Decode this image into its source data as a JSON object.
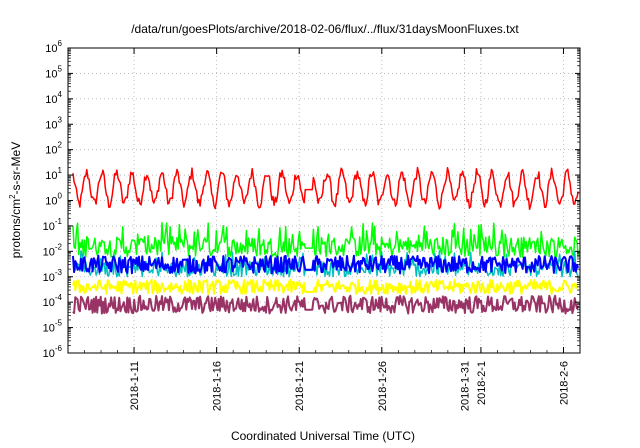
{
  "chart_data": {
    "type": "line",
    "title": "/data/run/goesPlots/archive/2018-02-06/flux/../flux/31daysMoonFluxes.txt",
    "xlabel": "Coordinated Universal Time (UTC)",
    "ylabel": "protons/cm²-s-sr-MeV",
    "ylabel_parts": {
      "base": "protons/cm",
      "sup": "2",
      "rest": "-s-sr-MeV"
    },
    "y_scale": "log",
    "ylim": [
      1e-06,
      1000000.0
    ],
    "y_ticks": [
      {
        "value": -6,
        "base": "10",
        "exp": "-6"
      },
      {
        "value": -5,
        "base": "10",
        "exp": "-5"
      },
      {
        "value": -4,
        "base": "10",
        "exp": "-4"
      },
      {
        "value": -3,
        "base": "10",
        "exp": "-3"
      },
      {
        "value": -2,
        "base": "10",
        "exp": "-2"
      },
      {
        "value": -1,
        "base": "10",
        "exp": "-1"
      },
      {
        "value": 0,
        "base": "10",
        "exp": "0"
      },
      {
        "value": 1,
        "base": "10",
        "exp": "1"
      },
      {
        "value": 2,
        "base": "10",
        "exp": "2"
      },
      {
        "value": 3,
        "base": "10",
        "exp": "3"
      },
      {
        "value": 4,
        "base": "10",
        "exp": "4"
      },
      {
        "value": 5,
        "base": "10",
        "exp": "5"
      },
      {
        "value": 6,
        "base": "10",
        "exp": "6"
      }
    ],
    "xlim": [
      "2018-01-07",
      "2018-02-07"
    ],
    "x_ticks": [
      {
        "date": "2018-01-11",
        "label": "2018-1-11"
      },
      {
        "date": "2018-01-16",
        "label": "2018-1-16"
      },
      {
        "date": "2018-01-21",
        "label": "2018-1-21"
      },
      {
        "date": "2018-01-26",
        "label": "2018-1-26"
      },
      {
        "date": "2018-01-31",
        "label": "2018-1-31"
      },
      {
        "date": "2018-02-01",
        "label": "2018-2-1"
      },
      {
        "date": "2018-02-06",
        "label": "2018-2-6"
      }
    ],
    "grid": true,
    "gap": [
      "2018-01-21",
      "2018-01-22"
    ],
    "colors": {
      "red": "#ff0000",
      "green": "#00ff00",
      "blue": "#0000ff",
      "cyan": "#00c0c0",
      "yellow": "#ffff00",
      "maroon": "#993366"
    },
    "series": [
      {
        "color": "#ff0000",
        "median": 3.0,
        "spread": 1.1,
        "mode": "diurnal",
        "width": 1.5
      },
      {
        "color": "#00ff00",
        "median": 0.015,
        "spread": 0.8,
        "mode": "spiky",
        "width": 1.5
      },
      {
        "color": "#00c0c0",
        "median": 0.002,
        "spread": 0.6,
        "mode": "spiky",
        "width": 1.5
      },
      {
        "color": "#0000ff",
        "median": 0.003,
        "spread": 0.5,
        "mode": "band",
        "width": 2.0
      },
      {
        "color": "#ffff00",
        "median": 0.0004,
        "spread": 0.4,
        "mode": "band",
        "width": 2.0
      },
      {
        "color": "#993366",
        "median": 8e-05,
        "spread": 0.5,
        "mode": "band",
        "width": 2.0
      }
    ]
  }
}
